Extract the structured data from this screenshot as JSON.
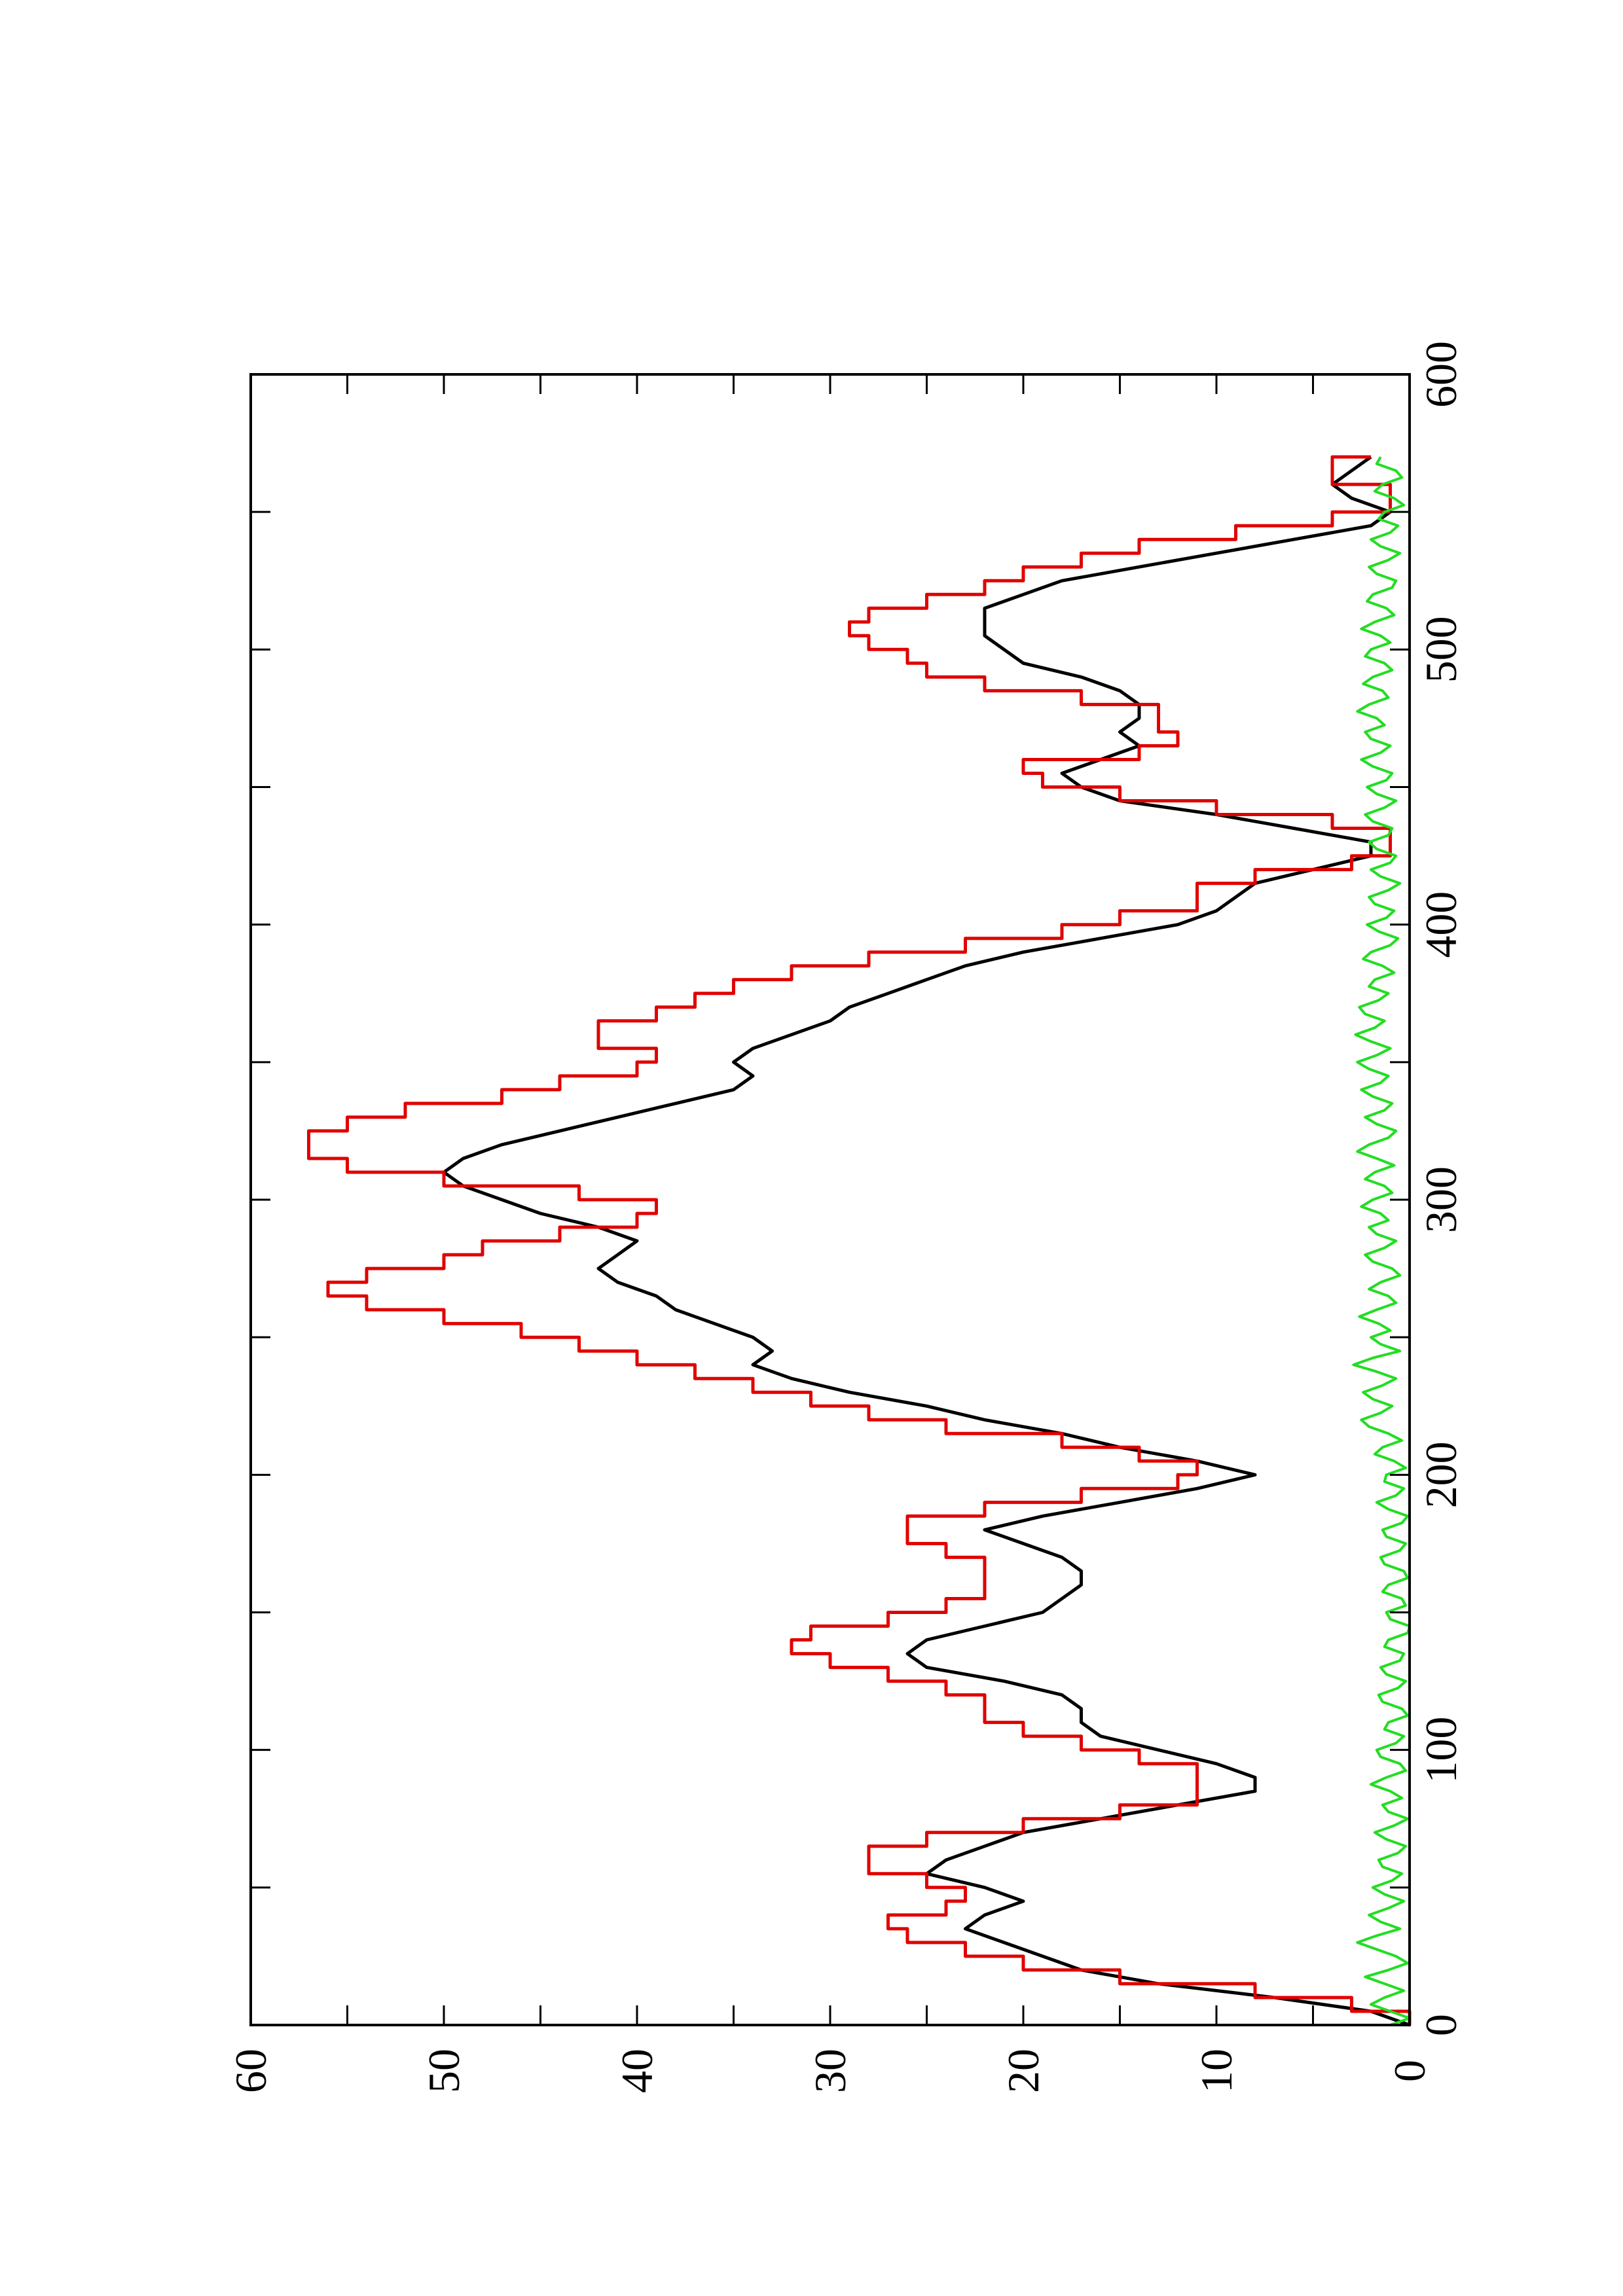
{
  "chart_data": {
    "type": "line",
    "title": "",
    "xlabel": "",
    "ylabel": "",
    "orientation": "rotated-90-degrees",
    "xlim": [
      0,
      600
    ],
    "ylim": [
      0,
      60
    ],
    "xticks": [
      0,
      100,
      200,
      300,
      400,
      500,
      600
    ],
    "xtick_labels": [
      "0",
      "100",
      "200",
      "300",
      "400",
      "500",
      "600"
    ],
    "yticks": [
      0,
      10,
      20,
      30,
      40,
      50,
      60
    ],
    "ytick_labels": [
      "0",
      "10",
      "20",
      "30",
      "40",
      "50",
      "60"
    ],
    "grid": false,
    "series": [
      {
        "color": "#000000",
        "style": "smooth",
        "x": [
          0,
          5,
          10,
          15,
          20,
          25,
          30,
          35,
          40,
          45,
          50,
          55,
          60,
          65,
          70,
          75,
          80,
          85,
          90,
          95,
          100,
          105,
          110,
          115,
          120,
          125,
          130,
          135,
          140,
          145,
          150,
          155,
          160,
          165,
          170,
          175,
          180,
          185,
          190,
          195,
          200,
          205,
          210,
          215,
          220,
          225,
          230,
          235,
          240,
          245,
          250,
          255,
          260,
          265,
          270,
          275,
          280,
          285,
          290,
          295,
          300,
          305,
          310,
          315,
          320,
          325,
          330,
          335,
          340,
          345,
          350,
          355,
          360,
          365,
          370,
          375,
          380,
          385,
          390,
          395,
          400,
          405,
          410,
          415,
          420,
          425,
          430,
          435,
          440,
          445,
          450,
          455,
          460,
          465,
          470,
          475,
          480,
          485,
          490,
          495,
          500,
          505,
          510,
          515,
          520,
          525,
          530,
          535,
          540,
          545,
          550,
          555,
          560,
          565,
          570
        ],
        "values": [
          0,
          2,
          7,
          13,
          17,
          19,
          21,
          23,
          22,
          20,
          22,
          25,
          24,
          22,
          20,
          16,
          12,
          8,
          8,
          10,
          13,
          16,
          17,
          17,
          18,
          21,
          25,
          26,
          25,
          22,
          19,
          18,
          17,
          17,
          18,
          20,
          22,
          19,
          15,
          11,
          8,
          11,
          15,
          18,
          22,
          25,
          29,
          32,
          34,
          33,
          34,
          36,
          38,
          39,
          41,
          42,
          41,
          40,
          42,
          45,
          47,
          49,
          50,
          49,
          47,
          44,
          41,
          38,
          35,
          34,
          35,
          34,
          32,
          30,
          29,
          27,
          25,
          23,
          20,
          16,
          12,
          10,
          9,
          8,
          5,
          2,
          2,
          6,
          10,
          15,
          17,
          18,
          16,
          14,
          15,
          14,
          14,
          15,
          17,
          20,
          21,
          22,
          22,
          22,
          20,
          18,
          14,
          10,
          6,
          2,
          1,
          3,
          4,
          3,
          2
        ]
      },
      {
        "color": "#e00000",
        "style": "steps",
        "x": [
          0,
          5,
          10,
          15,
          20,
          25,
          30,
          35,
          40,
          45,
          50,
          55,
          60,
          65,
          70,
          75,
          80,
          85,
          90,
          95,
          100,
          105,
          110,
          115,
          120,
          125,
          130,
          135,
          140,
          145,
          150,
          155,
          160,
          165,
          170,
          175,
          180,
          185,
          190,
          195,
          200,
          205,
          210,
          215,
          220,
          225,
          230,
          235,
          240,
          245,
          250,
          255,
          260,
          265,
          270,
          275,
          280,
          285,
          290,
          295,
          300,
          305,
          310,
          315,
          320,
          325,
          330,
          335,
          340,
          345,
          350,
          355,
          360,
          365,
          370,
          375,
          380,
          385,
          390,
          395,
          400,
          405,
          410,
          415,
          420,
          425,
          430,
          435,
          440,
          445,
          450,
          455,
          460,
          465,
          470,
          475,
          480,
          485,
          490,
          495,
          500,
          505,
          510,
          515,
          520,
          525,
          530,
          535,
          540,
          545,
          550,
          555,
          560,
          565,
          570
        ],
        "values": [
          0,
          3,
          8,
          15,
          20,
          23,
          26,
          27,
          24,
          23,
          25,
          28,
          28,
          25,
          20,
          15,
          11,
          11,
          11,
          14,
          17,
          20,
          22,
          22,
          24,
          27,
          30,
          32,
          31,
          27,
          24,
          22,
          22,
          22,
          24,
          26,
          26,
          22,
          17,
          12,
          11,
          14,
          18,
          24,
          28,
          31,
          34,
          37,
          40,
          43,
          46,
          50,
          54,
          56,
          54,
          50,
          48,
          44,
          40,
          39,
          43,
          50,
          55,
          57,
          57,
          55,
          52,
          47,
          44,
          40,
          39,
          42,
          42,
          39,
          37,
          35,
          32,
          28,
          23,
          18,
          15,
          11,
          11,
          8,
          3,
          1,
          1,
          4,
          10,
          15,
          19,
          20,
          14,
          12,
          13,
          13,
          17,
          22,
          25,
          26,
          28,
          29,
          28,
          25,
          22,
          20,
          17,
          14,
          9,
          4,
          1,
          1,
          4,
          4,
          2
        ]
      },
      {
        "color": "#22dd22",
        "style": "noise",
        "x": [
          0,
          5,
          10,
          15,
          20,
          25,
          30,
          35,
          40,
          45,
          50,
          55,
          60,
          65,
          70,
          75,
          80,
          85,
          90,
          95,
          100,
          105,
          110,
          115,
          120,
          125,
          130,
          135,
          140,
          145,
          150,
          155,
          160,
          165,
          170,
          175,
          180,
          185,
          190,
          195,
          200,
          205,
          210,
          215,
          220,
          225,
          230,
          235,
          240,
          245,
          250,
          255,
          260,
          265,
          270,
          275,
          280,
          285,
          290,
          295,
          300,
          305,
          310,
          315,
          320,
          325,
          330,
          335,
          340,
          345,
          350,
          355,
          360,
          365,
          370,
          375,
          380,
          385,
          390,
          395,
          400,
          405,
          410,
          415,
          420,
          425,
          430,
          435,
          440,
          445,
          450,
          455,
          460,
          465,
          470,
          475,
          480,
          485,
          490,
          495,
          500,
          505,
          510,
          515,
          520,
          525,
          530,
          535,
          540,
          545,
          550,
          555,
          560,
          565,
          570
        ],
        "values": [
          0.5,
          1.5,
          0.8,
          1.8,
          0.6,
          1.2,
          2.2,
          1.0,
          1.6,
          0.8,
          1.4,
          0.9,
          1.1,
          0.7,
          1.3,
          0.6,
          0.9,
          1.5,
          0.7,
          1.0,
          1.2,
          0.8,
          0.6,
          0.9,
          1.1,
          0.7,
          1.0,
          0.8,
          0.6,
          0.5,
          0.7,
          0.9,
          0.6,
          0.8,
          1.0,
          0.7,
          0.9,
          0.6,
          1.2,
          0.8,
          0.7,
          1.3,
          0.9,
          1.6,
          2.0,
          1.4,
          1.9,
          1.2,
          2.4,
          1.0,
          1.5,
          2.1,
          1.2,
          1.6,
          1.0,
          1.4,
          1.8,
          1.2,
          1.6,
          2.0,
          1.4,
          1.8,
          1.3,
          2.2,
          1.6,
          1.2,
          1.8,
          1.4,
          2.0,
          1.6,
          2.2,
          1.5,
          2.3,
          1.8,
          2.1,
          1.6,
          1.3,
          1.9,
          1.5,
          1.1,
          1.7,
          1.3,
          1.6,
          1.0,
          1.5,
          1.2,
          1.6,
          1.4,
          1.8,
          1.2,
          1.7,
          1.4,
          2.0,
          1.5,
          1.8,
          2.2,
          1.6,
          1.9,
          1.4,
          1.8,
          1.5,
          2.0,
          1.3,
          1.7,
          1.4,
          1.2,
          1.6,
          1.0,
          1.5,
          1.1,
          0.8,
          1.3,
          0.9,
          1.2,
          1.0
        ]
      }
    ]
  }
}
